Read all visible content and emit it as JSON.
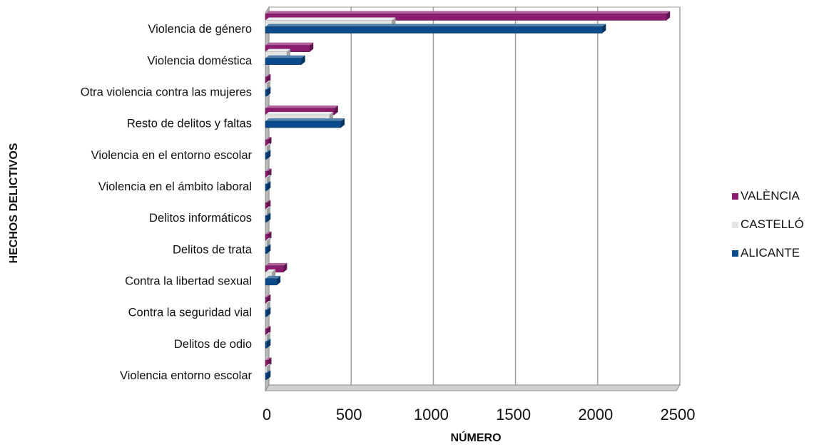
{
  "chart_data": {
    "type": "bar",
    "orientation": "horizontal",
    "style": "3d",
    "categories": [
      "Violencia de género",
      "Violencia doméstica",
      "Otra violencia contra las mujeres",
      "Resto de delitos y faltas",
      "Violencia en el entorno escolar",
      "Violencia en el ámbito laboral",
      "Delitos informáticos",
      "Delitos de trata",
      "Contra la libertad sexual",
      "Contra la seguridad vial",
      "Delitos de odio",
      "Violencia entorno escolar"
    ],
    "series": [
      {
        "name": "VALÈNCIA",
        "color": "#8B1D6E",
        "values": [
          2440,
          270,
          10,
          420,
          15,
          15,
          10,
          15,
          110,
          10,
          10,
          15
        ]
      },
      {
        "name": "CASTELLÓ",
        "color": "#E2E5E4",
        "values": [
          770,
          130,
          5,
          390,
          5,
          5,
          5,
          5,
          40,
          5,
          5,
          5
        ]
      },
      {
        "name": "ALICANTE",
        "color": "#0B4A8B",
        "values": [
          2050,
          220,
          10,
          460,
          10,
          10,
          10,
          10,
          70,
          10,
          10,
          10
        ]
      }
    ],
    "xlabel": "NÚMERO",
    "ylabel": "HECHOS DELICTIVOS",
    "xlim": [
      0,
      2500
    ],
    "xticks": [
      "0",
      "500",
      "1000",
      "1500",
      "2000",
      "2500"
    ],
    "grid": true,
    "legend_position": "right"
  }
}
